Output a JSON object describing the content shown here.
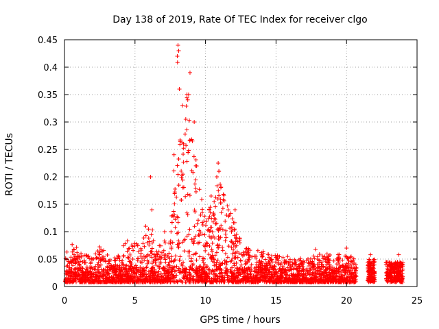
{
  "chart_data": {
    "type": "scatter",
    "title": "Day 138 of 2019, Rate Of TEC Index for receiver clgo",
    "xlabel": "GPS time / hours",
    "ylabel": "ROTI / TECUs",
    "xlim": [
      0,
      25
    ],
    "ylim": [
      0,
      0.45
    ],
    "xticks": [
      "0",
      "5",
      "10",
      "15",
      "20",
      "25"
    ],
    "yticks": [
      "0",
      "0.05",
      "0.1",
      "0.15",
      "0.2",
      "0.25",
      "0.3",
      "0.35",
      "0.4",
      "0.45"
    ],
    "xtick_values": [
      0,
      5,
      10,
      15,
      20,
      25
    ],
    "ytick_values": [
      0,
      0.05,
      0.1,
      0.15,
      0.2,
      0.25,
      0.3,
      0.35,
      0.4,
      0.45
    ],
    "grid": true,
    "marker": "+",
    "color": "#ff0000",
    "series": [
      {
        "name": "ROTI",
        "envelope": {
          "description": "approximate upper envelope of the point cloud (x hours, y TECU)",
          "x": [
            0,
            0.5,
            1,
            1.5,
            2,
            2.5,
            3,
            3.5,
            4,
            4.5,
            5,
            5.5,
            6,
            6.5,
            7,
            7.5,
            7.8,
            8,
            8.2,
            8.5,
            8.8,
            9,
            9.2,
            9.5,
            10,
            10.5,
            11,
            11.5,
            12,
            12.5,
            13,
            14,
            15,
            16,
            17,
            18,
            19,
            20,
            20.7
          ],
          "y": [
            0.06,
            0.08,
            0.07,
            0.06,
            0.05,
            0.085,
            0.06,
            0.05,
            0.07,
            0.09,
            0.08,
            0.085,
            0.14,
            0.07,
            0.08,
            0.1,
            0.27,
            0.44,
            0.36,
            0.31,
            0.39,
            0.3,
            0.28,
            0.2,
            0.12,
            0.16,
            0.22,
            0.15,
            0.14,
            0.08,
            0.07,
            0.065,
            0.06,
            0.055,
            0.05,
            0.06,
            0.06,
            0.06,
            0.05
          ]
        },
        "outliers": [
          {
            "x": 6.1,
            "y": 0.2
          },
          {
            "x": 6.2,
            "y": 0.14
          },
          {
            "x": 7.1,
            "y": 0.1
          },
          {
            "x": 8.05,
            "y": 0.44
          },
          {
            "x": 8.1,
            "y": 0.43
          },
          {
            "x": 8.0,
            "y": 0.42
          },
          {
            "x": 8.15,
            "y": 0.36
          },
          {
            "x": 8.6,
            "y": 0.305
          },
          {
            "x": 8.9,
            "y": 0.39
          },
          {
            "x": 8.8,
            "y": 0.35
          },
          {
            "x": 9.2,
            "y": 0.3
          },
          {
            "x": 10.9,
            "y": 0.225
          },
          {
            "x": 10.95,
            "y": 0.21
          },
          {
            "x": 10.8,
            "y": 0.2
          },
          {
            "x": 10.4,
            "y": 0.165
          },
          {
            "x": 12.1,
            "y": 0.14
          },
          {
            "x": 12.2,
            "y": 0.095
          },
          {
            "x": 17.8,
            "y": 0.068
          },
          {
            "x": 20.0,
            "y": 0.07
          },
          {
            "x": 21.7,
            "y": 0.058
          },
          {
            "x": 23.7,
            "y": 0.058
          }
        ],
        "clusters": [
          {
            "x_start": 21.5,
            "x_end": 22.0,
            "y_max": 0.05
          },
          {
            "x_start": 22.8,
            "x_end": 23.5,
            "y_max": 0.045
          },
          {
            "x_start": 23.5,
            "x_end": 24.0,
            "y_max": 0.045
          }
        ]
      }
    ]
  }
}
